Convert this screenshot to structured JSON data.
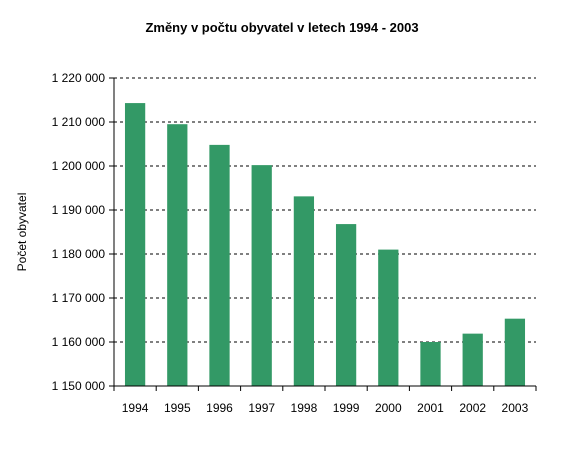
{
  "chart_data": {
    "type": "bar",
    "title": "Změny v počtu obyvatel v letech 1994 - 2003",
    "xlabel": "",
    "ylabel": "Počet obyvatel",
    "categories": [
      "1994",
      "1995",
      "1996",
      "1997",
      "1998",
      "1999",
      "2000",
      "2001",
      "2002",
      "2003"
    ],
    "values": [
      1214300,
      1209500,
      1204800,
      1200200,
      1193100,
      1186800,
      1181000,
      1160000,
      1161900,
      1165300
    ],
    "ylim": [
      1150000,
      1220000
    ],
    "yticks": [
      1150000,
      1160000,
      1170000,
      1180000,
      1190000,
      1200000,
      1210000,
      1220000
    ],
    "ytick_labels": [
      "1 150 000",
      "1 160 000",
      "1 170 000",
      "1 180 000",
      "1 190 000",
      "1 200 000",
      "1 210 000",
      "1 220 000"
    ],
    "grid": true,
    "bar_color": "#339966"
  }
}
